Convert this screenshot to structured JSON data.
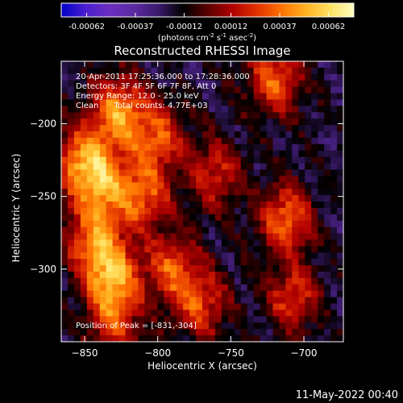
{
  "chart_data": {
    "type": "heatmap",
    "title": "Reconstructed RHESSI Image",
    "xlabel": "Heliocentric X (arcsec)",
    "ylabel": "Heliocentric Y (arcsec)",
    "xlim": [
      -866,
      -673
    ],
    "ylim": [
      -350,
      -157
    ],
    "x_ticks": [
      -850,
      -800,
      -750,
      -700
    ],
    "x_tick_labels": [
      "−850",
      "−800",
      "−750",
      "−700"
    ],
    "y_ticks": [
      -200,
      -250,
      -300
    ],
    "y_tick_labels": [
      "−200",
      "−250",
      "−300"
    ],
    "colorbar": {
      "range": [
        -0.00075,
        0.00075
      ],
      "ticks": [
        -0.00062,
        -0.00037,
        -0.00012,
        0.00012,
        0.00037,
        0.00062
      ],
      "tick_labels": [
        "-0.00062",
        "-0.00037",
        "-0.00012",
        "0.00012",
        "0.00037",
        "0.00062"
      ],
      "unit_prefix": "(photons cm",
      "unit_exp1": "-2",
      "unit_mid1": " s",
      "unit_exp2": "-1",
      "unit_mid2": " asec",
      "unit_exp3": "-2",
      "unit_suffix": ")",
      "colormap": [
        "#0000c8",
        "#4a1fcf",
        "#6b2fbf",
        "#5a2aa0",
        "#3a1a6a",
        "#000000",
        "#5a0000",
        "#b00000",
        "#e03000",
        "#ff7000",
        "#ffb020",
        "#ffe060",
        "#ffffc0"
      ]
    },
    "annotations": [
      "20-Apr-2011 17:25:36.000 to 17:28:36.000",
      "Detectors: 3F 4F 5F 6F 7F 8F, Att 0",
      "Energy Range: 12.0 - 25.0 keV",
      "Clean      Total counts: 4.77E+03"
    ],
    "peak_label": "Position of Peak = [-831,-304]",
    "peak_position": [
      -831,
      -304
    ],
    "sources": [
      {
        "x": -827,
        "y": -192,
        "intensity": 0.00062
      },
      {
        "x": -852,
        "y": -225,
        "intensity": 0.00055
      },
      {
        "x": -838,
        "y": -243,
        "intensity": 0.0005
      },
      {
        "x": -810,
        "y": -250,
        "intensity": 0.00048
      },
      {
        "x": -800,
        "y": -210,
        "intensity": 0.00045
      },
      {
        "x": -845,
        "y": -280,
        "intensity": 0.00047
      },
      {
        "x": -831,
        "y": -304,
        "intensity": 0.0006
      },
      {
        "x": -790,
        "y": -300,
        "intensity": 0.00045
      },
      {
        "x": -770,
        "y": -325,
        "intensity": 0.00042
      },
      {
        "x": -720,
        "y": -170,
        "intensity": 0.0005
      },
      {
        "x": -712,
        "y": -265,
        "intensity": 0.00052
      },
      {
        "x": -708,
        "y": -320,
        "intensity": 0.0004
      },
      {
        "x": -760,
        "y": -235,
        "intensity": 0.00038
      },
      {
        "x": -830,
        "y": -335,
        "intensity": 0.0004
      }
    ],
    "grid": false
  },
  "footer_timestamp": "11-May-2022 00:40"
}
